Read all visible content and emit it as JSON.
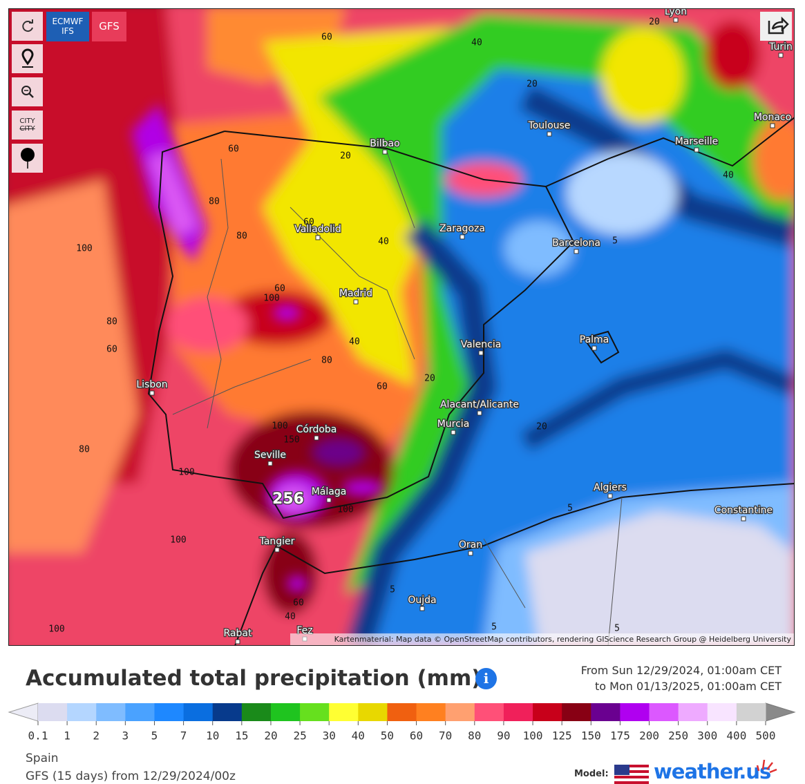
{
  "controls": {
    "models": [
      "ECMWF",
      "IFS",
      "GFS"
    ],
    "city_icon": [
      "CITY",
      "CITY"
    ]
  },
  "map": {
    "cities": [
      "Lyon",
      "Turin",
      "Toulouse",
      "Monaco",
      "Marseille",
      "Bilbao",
      "Zaragoza",
      "Valladolid",
      "Barcelona",
      "Madrid",
      "Palma",
      "Valencia",
      "Lisbon",
      "Alacant/Alicante",
      "Murcia",
      "Córdoba",
      "Seville",
      "Málaga",
      "Algiers",
      "Constantine",
      "Tangier",
      "Oran",
      "Oujda",
      "Rabat",
      "Fez"
    ],
    "contours": [
      60,
      40,
      20,
      20,
      60,
      20,
      80,
      80,
      100,
      60,
      40,
      5,
      60,
      100,
      80,
      60,
      40,
      80,
      20,
      60,
      100,
      150,
      80,
      100,
      100,
      5,
      20,
      100,
      5,
      60,
      40,
      100,
      5,
      5,
      40
    ],
    "peak": "256",
    "attribution": "Kartenmaterial: Map data © OpenStreetMap contributors, rendering GIScience Research Group @ Heidelberg University"
  },
  "header": {
    "title": "Accumulated total precipitation (mm)",
    "from": "From Sun 12/29/2024, 01:00am CET",
    "to": "to Mon 01/13/2025, 01:00am CET"
  },
  "legend": {
    "labels": [
      "0.1",
      "1",
      "2",
      "3",
      "5",
      "7",
      "10",
      "15",
      "20",
      "25",
      "30",
      "40",
      "50",
      "60",
      "70",
      "80",
      "90",
      "100",
      "125",
      "150",
      "175",
      "200",
      "250",
      "300",
      "400",
      "500"
    ],
    "colors": [
      "#dcdcf0",
      "#b4d6ff",
      "#7fbcff",
      "#4aa2ff",
      "#1e88ff",
      "#0a6ee0",
      "#073a8c",
      "#1a8a1a",
      "#1fc41f",
      "#66e01e",
      "#ffff33",
      "#e8d800",
      "#f06010",
      "#ff8020",
      "#ffa070",
      "#ff5078",
      "#f0205a",
      "#c8001a",
      "#880014",
      "#6a0090",
      "#b000f0",
      "#dc58ff",
      "#eeaaff",
      "#f8e4ff",
      "#d2d2d2"
    ],
    "under_color": "#ececf6",
    "over_color": "#8a8a8a"
  },
  "footer": {
    "region": "Spain",
    "run": "GFS (15 days) from 12/29/2024/00z",
    "model_label": "Model:",
    "brand": "weather.us"
  }
}
